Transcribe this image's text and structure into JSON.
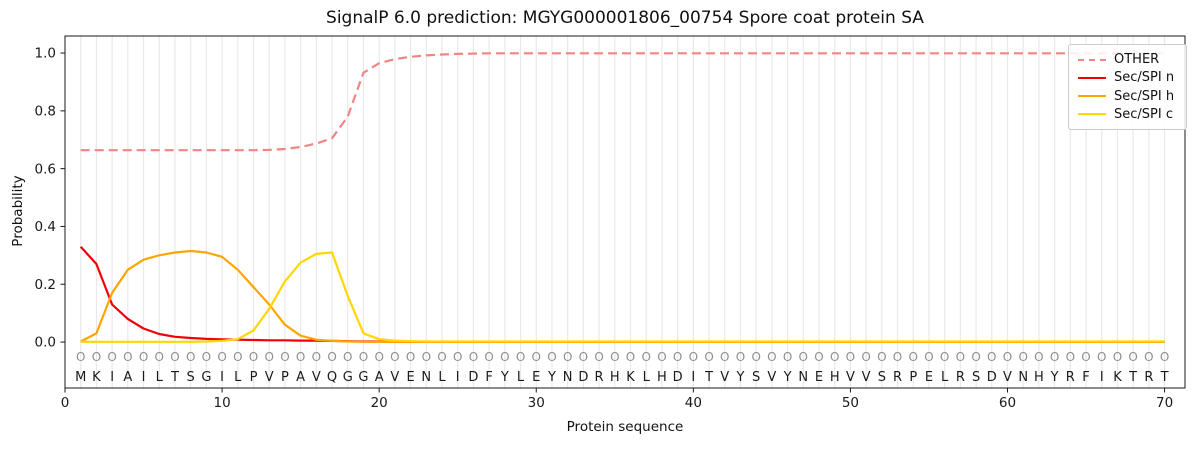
{
  "chart_data": {
    "type": "line",
    "title": "SignalP 6.0 prediction: MGYG000001806_00754 Spore coat protein SA",
    "xlabel": "Protein sequence",
    "ylabel": "Probability",
    "xlim": [
      0,
      71.3
    ],
    "ylim": [
      -0.159,
      1.059
    ],
    "x_ticks": [
      0,
      10,
      20,
      30,
      40,
      50,
      60,
      70
    ],
    "y_ticks": [
      "0.0",
      "0.2",
      "0.4",
      "0.6",
      "0.8",
      "1.0"
    ],
    "grid": "vertical line at every residue position, light gray",
    "legend_position": "upper right",
    "x": [
      1,
      2,
      3,
      4,
      5,
      6,
      7,
      8,
      9,
      10,
      11,
      12,
      13,
      14,
      15,
      16,
      17,
      18,
      19,
      20,
      21,
      22,
      23,
      24,
      25,
      26,
      27,
      28,
      29,
      30,
      31,
      32,
      33,
      34,
      35,
      36,
      37,
      38,
      39,
      40,
      41,
      42,
      43,
      44,
      45,
      46,
      47,
      48,
      49,
      50,
      51,
      52,
      53,
      54,
      55,
      56,
      57,
      58,
      59,
      60,
      61,
      62,
      63,
      64,
      65,
      66,
      67,
      68,
      69,
      70
    ],
    "series": [
      {
        "name": "OTHER",
        "color": "#f28484",
        "style": "dashed",
        "values": [
          0.664,
          0.664,
          0.664,
          0.664,
          0.664,
          0.664,
          0.664,
          0.664,
          0.664,
          0.664,
          0.664,
          0.664,
          0.665,
          0.668,
          0.675,
          0.687,
          0.705,
          0.78,
          0.932,
          0.965,
          0.979,
          0.987,
          0.992,
          0.995,
          0.997,
          0.998,
          0.999,
          0.999,
          0.999,
          0.999,
          0.999,
          0.999,
          0.999,
          0.999,
          0.999,
          0.999,
          0.999,
          0.999,
          0.999,
          0.999,
          0.999,
          0.999,
          0.999,
          0.999,
          0.999,
          0.999,
          0.999,
          0.999,
          0.999,
          0.999,
          0.999,
          0.999,
          0.999,
          0.999,
          0.999,
          0.999,
          0.999,
          0.999,
          0.999,
          0.999,
          0.999,
          0.999,
          0.999,
          0.999,
          0.999,
          0.999,
          0.999,
          0.999,
          0.999,
          0.999
        ]
      },
      {
        "name": "Sec/SPI n",
        "color": "#ef0008",
        "style": "solid",
        "values": [
          0.33,
          0.27,
          0.13,
          0.08,
          0.047,
          0.028,
          0.018,
          0.014,
          0.011,
          0.009,
          0.008,
          0.007,
          0.006,
          0.006,
          0.005,
          0.005,
          0.004,
          0.003,
          0.002,
          0.002,
          0.001,
          0.001,
          0.001,
          0.001,
          0.001,
          0.001,
          0.001,
          0.001,
          0.001,
          0.001,
          0.001,
          0.001,
          0.001,
          0.001,
          0.001,
          0.001,
          0.001,
          0.001,
          0.001,
          0.001,
          0.001,
          0.001,
          0.001,
          0.001,
          0.001,
          0.001,
          0.001,
          0.001,
          0.001,
          0.001,
          0.001,
          0.001,
          0.001,
          0.001,
          0.001,
          0.001,
          0.001,
          0.001,
          0.001,
          0.001,
          0.001,
          0.001,
          0.001,
          0.001,
          0.001,
          0.001,
          0.001,
          0.001,
          0.001,
          0.001
        ]
      },
      {
        "name": "Sec/SPI h",
        "color": "#ffa500",
        "style": "solid",
        "values": [
          0.002,
          0.03,
          0.17,
          0.25,
          0.285,
          0.3,
          0.31,
          0.315,
          0.31,
          0.295,
          0.25,
          0.19,
          0.13,
          0.06,
          0.022,
          0.008,
          0.004,
          0.002,
          0.001,
          0.001,
          0.001,
          0.001,
          0.001,
          0.001,
          0.001,
          0.001,
          0.001,
          0.001,
          0.001,
          0.001,
          0.001,
          0.001,
          0.001,
          0.001,
          0.001,
          0.001,
          0.001,
          0.001,
          0.001,
          0.001,
          0.001,
          0.001,
          0.001,
          0.001,
          0.001,
          0.001,
          0.001,
          0.001,
          0.001,
          0.001,
          0.001,
          0.001,
          0.001,
          0.001,
          0.001,
          0.001,
          0.001,
          0.001,
          0.001,
          0.001,
          0.001,
          0.001,
          0.001,
          0.001,
          0.001,
          0.001,
          0.001,
          0.001,
          0.001,
          0.001
        ]
      },
      {
        "name": "Sec/SPI c",
        "color": "#ffd700",
        "style": "solid",
        "values": [
          0.001,
          0.001,
          0.001,
          0.001,
          0.001,
          0.001,
          0.001,
          0.001,
          0.002,
          0.004,
          0.01,
          0.04,
          0.115,
          0.21,
          0.275,
          0.305,
          0.31,
          0.16,
          0.03,
          0.01,
          0.005,
          0.003,
          0.002,
          0.002,
          0.002,
          0.002,
          0.002,
          0.002,
          0.002,
          0.002,
          0.002,
          0.002,
          0.002,
          0.002,
          0.002,
          0.002,
          0.002,
          0.002,
          0.002,
          0.002,
          0.002,
          0.002,
          0.002,
          0.002,
          0.002,
          0.002,
          0.002,
          0.002,
          0.002,
          0.002,
          0.002,
          0.002,
          0.002,
          0.002,
          0.002,
          0.002,
          0.002,
          0.002,
          0.002,
          0.002,
          0.002,
          0.002,
          0.002,
          0.002,
          0.002,
          0.002,
          0.002,
          0.002,
          0.002,
          0.002
        ]
      }
    ],
    "sequence": "MKIAILTSGILPVPAVQGGAVENLIDFYLEYNDRHKLHDITVYSVYNEHVVSRPELRSDVNHYRFIKTRT",
    "per_position_predicted_label": "O"
  }
}
